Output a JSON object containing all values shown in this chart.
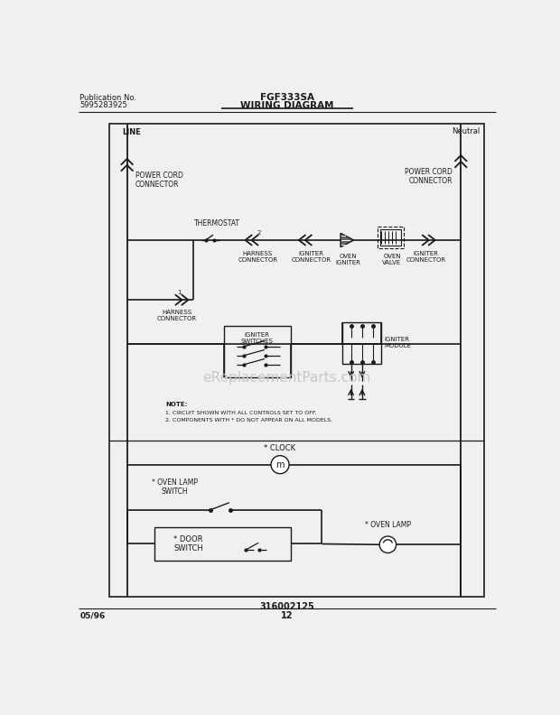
{
  "title": "FGF333SA",
  "subtitle": "WIRING DIAGRAM",
  "pub_no_label": "Publication No.",
  "pub_no": "5995283925",
  "part_no": "316002125",
  "date": "05/96",
  "page": "12",
  "bg_color": "#f0f0f0",
  "line_color": "#1a1a1a",
  "watermark": "eReplacementParts.com",
  "note1": "1. CIRCUIT SHOWN WITH ALL CONTROLS SET TO OFF.",
  "note2": "2. COMPONENTS WITH * DO NOT APPEAR ON ALL MODELS."
}
